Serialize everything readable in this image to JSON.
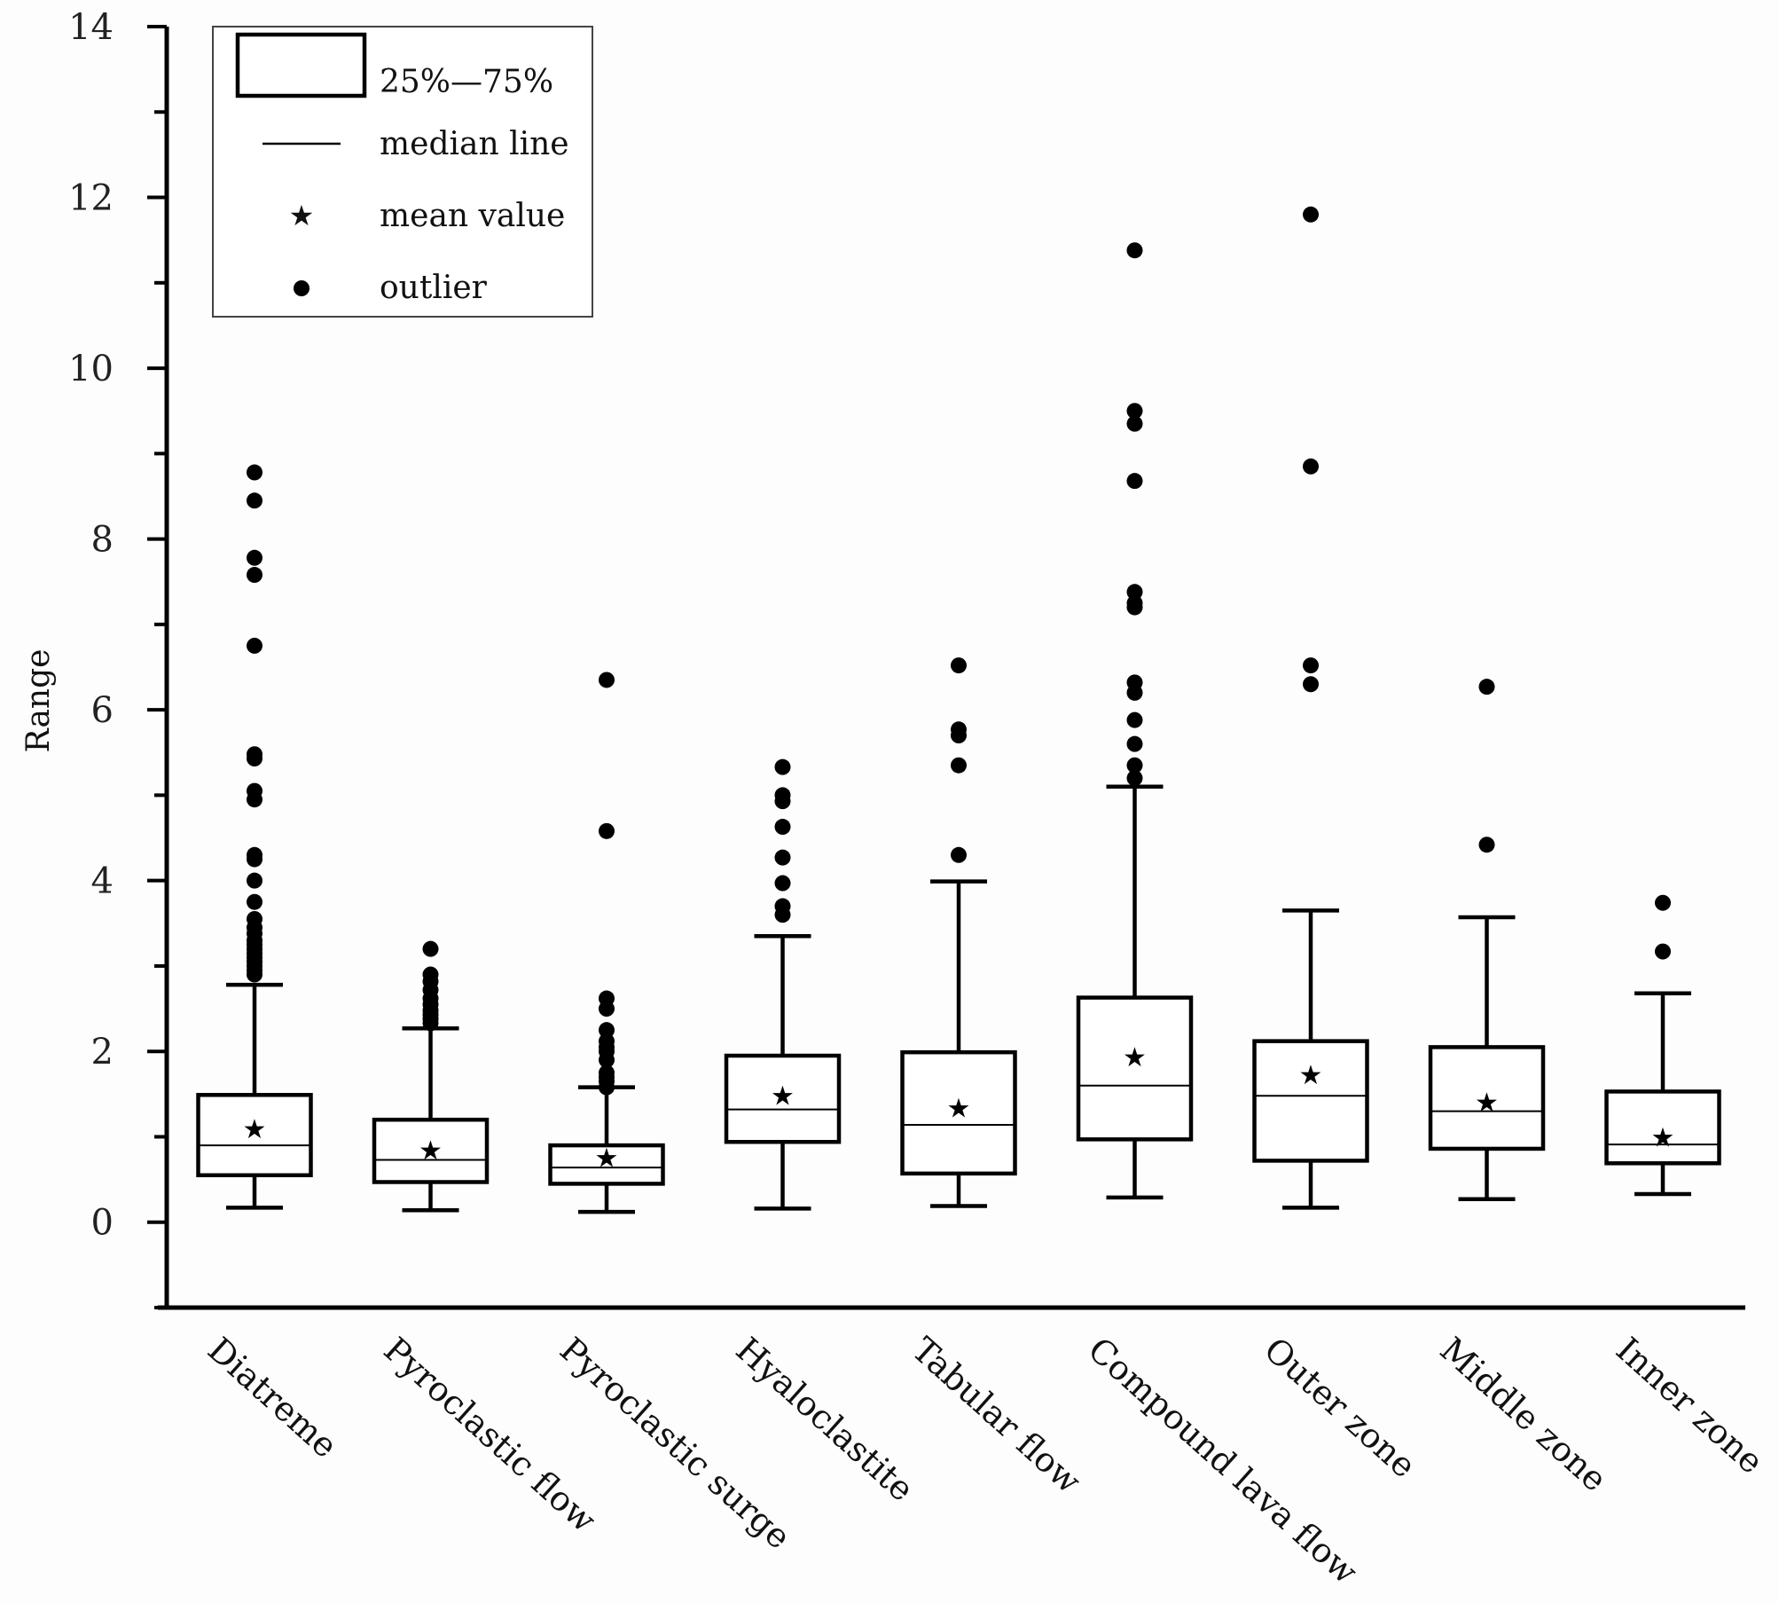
{
  "chart_data": {
    "type": "box",
    "title": "",
    "xlabel": "",
    "ylabel": "Range",
    "ylim": [
      -1,
      14
    ],
    "yticks": [
      0,
      2,
      4,
      6,
      8,
      10,
      12,
      14
    ],
    "legend": {
      "position": "top-left",
      "items": [
        {
          "kind": "box",
          "label": "25%—75%"
        },
        {
          "kind": "line",
          "label": "median line"
        },
        {
          "kind": "star",
          "label": "mean value"
        },
        {
          "kind": "dot",
          "label": "outlier"
        }
      ]
    },
    "categories": [
      "Diatreme",
      "Pyroclastic flow",
      "Pyroclastic surge",
      "Hyaloclastite",
      "Tabular flow",
      "Compound lava flow",
      "Outer zone",
      "Middle zone",
      "Inner zone"
    ],
    "boxes": [
      {
        "min": 0.17,
        "q1": 0.55,
        "median": 0.9,
        "q3": 1.49,
        "max": 2.78,
        "mean": 1.1,
        "outliers": [
          2.9,
          2.95,
          3.0,
          3.05,
          3.1,
          3.15,
          3.2,
          3.25,
          3.3,
          3.38,
          3.45,
          3.55,
          3.75,
          4.0,
          4.25,
          4.3,
          4.95,
          5.05,
          5.43,
          5.48,
          6.75,
          7.58,
          7.78,
          8.45,
          8.78
        ]
      },
      {
        "min": 0.14,
        "q1": 0.47,
        "median": 0.73,
        "q3": 1.2,
        "max": 2.27,
        "mean": 0.85,
        "outliers": [
          2.33,
          2.38,
          2.43,
          2.48,
          2.55,
          2.62,
          2.72,
          2.82,
          2.9,
          3.2
        ]
      },
      {
        "min": 0.12,
        "q1": 0.45,
        "median": 0.64,
        "q3": 0.9,
        "max": 1.58,
        "mean": 0.76,
        "outliers": [
          1.58,
          1.65,
          1.7,
          1.75,
          1.9,
          2.0,
          2.05,
          2.12,
          2.25,
          2.5,
          2.62,
          4.58,
          6.35
        ]
      },
      {
        "min": 0.16,
        "q1": 0.94,
        "median": 1.32,
        "q3": 1.95,
        "max": 3.35,
        "mean": 1.49,
        "outliers": [
          3.6,
          3.7,
          3.97,
          4.27,
          4.63,
          4.93,
          5.0,
          5.33
        ]
      },
      {
        "min": 0.19,
        "q1": 0.57,
        "median": 1.14,
        "q3": 1.99,
        "max": 3.99,
        "mean": 1.34,
        "outliers": [
          4.3,
          5.35,
          5.7,
          5.77,
          6.52
        ]
      },
      {
        "min": 0.29,
        "q1": 0.97,
        "median": 1.6,
        "q3": 2.63,
        "max": 5.1,
        "mean": 1.94,
        "outliers": [
          5.2,
          5.35,
          5.6,
          5.88,
          6.2,
          6.32,
          7.2,
          7.25,
          7.38,
          8.68,
          9.35,
          9.5,
          11.38
        ]
      },
      {
        "min": 0.17,
        "q1": 0.72,
        "median": 1.48,
        "q3": 2.12,
        "max": 3.65,
        "mean": 1.73,
        "outliers": [
          6.3,
          6.52,
          8.85,
          11.8
        ]
      },
      {
        "min": 0.27,
        "q1": 0.86,
        "median": 1.3,
        "q3": 2.05,
        "max": 3.57,
        "mean": 1.41,
        "outliers": [
          4.42,
          6.27
        ]
      },
      {
        "min": 0.33,
        "q1": 0.69,
        "median": 0.91,
        "q3": 1.53,
        "max": 2.68,
        "mean": 1.0,
        "outliers": [
          3.17,
          3.74
        ]
      }
    ]
  }
}
